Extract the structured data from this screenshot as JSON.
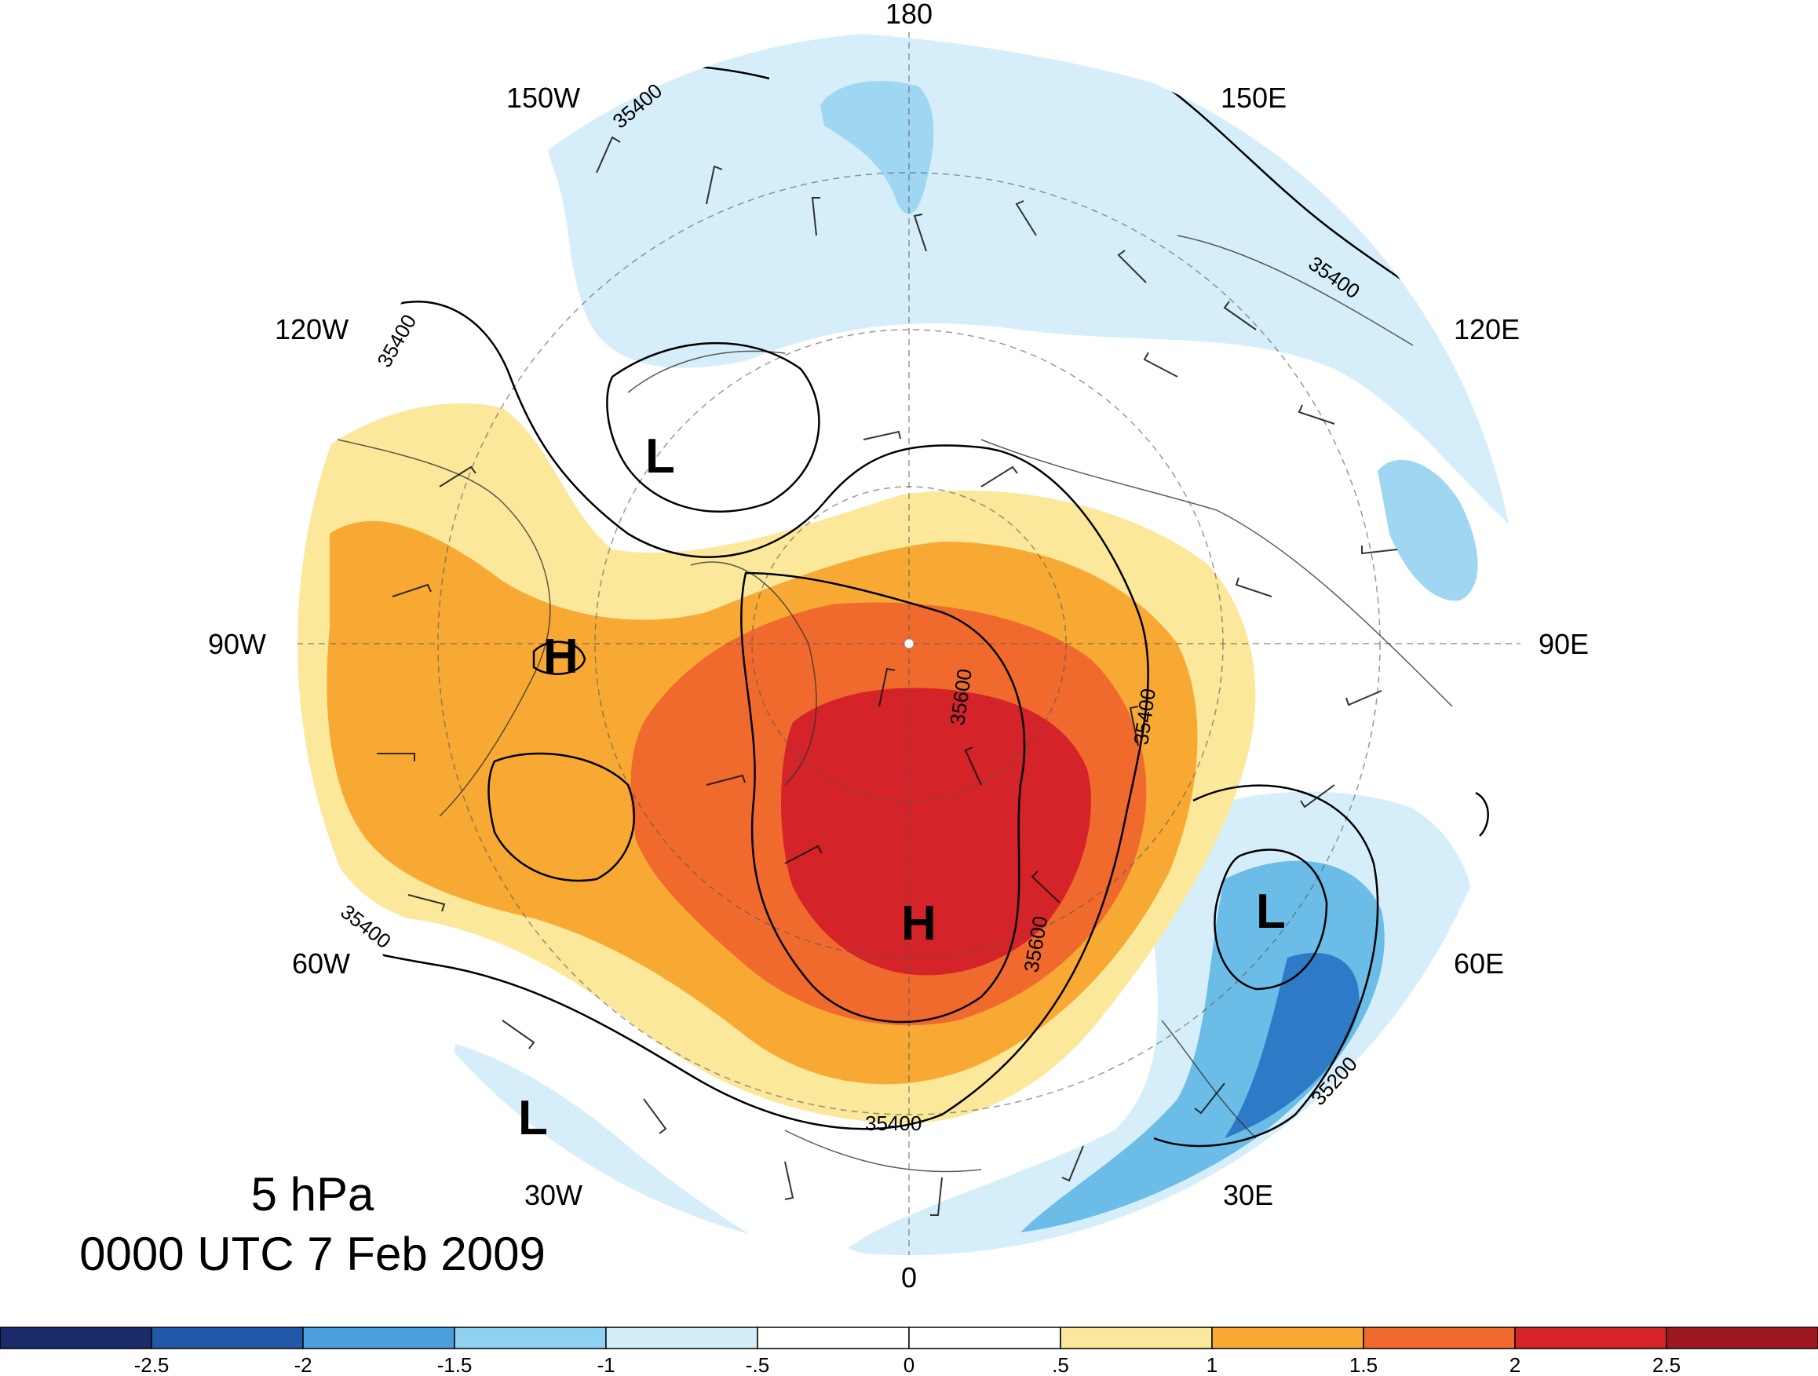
{
  "map": {
    "level_label": "5 hPa",
    "time_label": "0000 UTC 7 Feb 2009",
    "longitude_labels": [
      "180",
      "150E",
      "120E",
      "90E",
      "60E",
      "30E",
      "0",
      "30W",
      "60W",
      "90W",
      "120W",
      "150W"
    ],
    "contour_labels": [
      "35400",
      "35400",
      "35400",
      "35400",
      "35400",
      "35600",
      "35600",
      "35400",
      "35200"
    ],
    "markers": [
      "H",
      "H",
      "L",
      "L",
      "L"
    ]
  },
  "colorbar": {
    "colors": [
      "#1b2a6b",
      "#2158a8",
      "#4a9fdc",
      "#8fd1f2",
      "#d4eef9",
      "#ffffff",
      "#ffffff",
      "#fbe89a",
      "#f7a934",
      "#f06a2d",
      "#d42329",
      "#a0181f"
    ],
    "labels": [
      "-2.5",
      "-2",
      "-1.5",
      "-1",
      "-.5",
      "0",
      ".5",
      "1",
      "1.5",
      "2",
      "2.5"
    ]
  }
}
